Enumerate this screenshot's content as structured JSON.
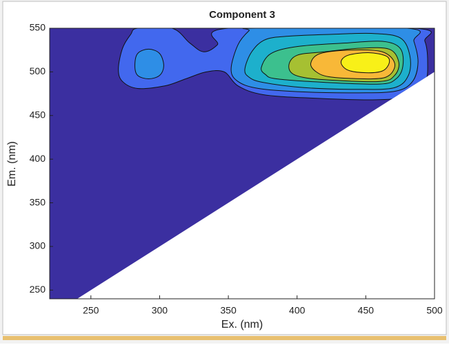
{
  "chart_data": {
    "type": "contour",
    "title": "Component 3",
    "xlabel": "Ex. (nm)",
    "ylabel": "Em. (nm)",
    "xlim": [
      220,
      500
    ],
    "ylim": [
      240,
      550
    ],
    "xticks": [
      250,
      300,
      350,
      400,
      450,
      500
    ],
    "yticks": [
      250,
      300,
      350,
      400,
      450,
      500,
      550
    ],
    "regions": [
      {
        "color": "#3b2fa0",
        "x": [
          220,
          220,
          500,
          500,
          240
        ],
        "y": [
          240,
          550,
          550,
          500,
          240
        ]
      },
      {
        "color": "#4268ee",
        "x": [
          270,
          273,
          279,
          284,
          309,
          322,
          332,
          342,
          350,
          485,
          493,
          495,
          493,
          480,
          455,
          410,
          375,
          357,
          347,
          334,
          319,
          304,
          284,
          273
        ],
        "y": [
          503,
          527,
          543,
          550,
          550,
          533,
          523,
          531,
          550,
          550,
          535,
          511,
          488,
          472,
          468,
          470,
          474,
          484,
          500,
          500,
          492,
          484,
          481,
          489
        ]
      },
      {
        "color": "#2e8ee6",
        "x": [
          282,
          284,
          292,
          300,
          303,
          300,
          292,
          284
        ],
        "y": [
          507,
          521,
          526,
          521,
          507,
          496,
          492,
          496
        ]
      },
      {
        "color": "#2e8ee6",
        "x": [
          352,
          357,
          365,
          370,
          480,
          485,
          488,
          484,
          472,
          445,
          405,
          372,
          357
        ],
        "y": [
          503,
          531,
          547,
          550,
          550,
          535,
          511,
          489,
          478,
          476,
          477,
          481,
          489
        ]
      },
      {
        "color": "#1db0cc",
        "x": [
          362,
          367,
          377,
          395,
          425,
          455,
          475,
          482,
          481,
          471,
          445,
          405,
          375,
          365
        ],
        "y": [
          503,
          523,
          537,
          541,
          543,
          544,
          539,
          519,
          496,
          482,
          480,
          482,
          488,
          494
        ]
      },
      {
        "color": "#3cc08e",
        "x": [
          374,
          381,
          400,
          435,
          462,
          475,
          477,
          472,
          460,
          420,
          385,
          377
        ],
        "y": [
          505,
          521,
          529,
          533,
          535,
          527,
          507,
          492,
          486,
          488,
          492,
          497
        ]
      },
      {
        "color": "#a6c032",
        "x": [
          394,
          400,
          420,
          445,
          467,
          474,
          471,
          460,
          420,
          399
        ],
        "y": [
          507,
          519,
          523,
          527,
          526,
          511,
          496,
          489,
          491,
          496
        ]
      },
      {
        "color": "#f8b838",
        "x": [
          410,
          417,
          440,
          462,
          471,
          467,
          455,
          425,
          414
        ],
        "y": [
          510,
          521,
          525,
          523,
          510,
          496,
          492,
          494,
          500
        ]
      },
      {
        "color": "#f8f018",
        "x": [
          432,
          437,
          452,
          465,
          467,
          462,
          450,
          437
        ],
        "y": [
          511,
          519,
          522,
          518,
          510,
          501,
          499,
          502
        ]
      }
    ]
  }
}
